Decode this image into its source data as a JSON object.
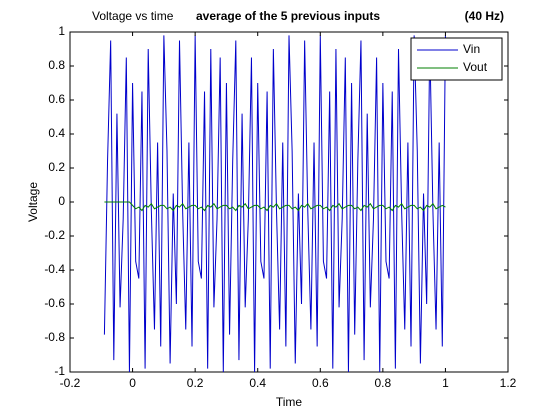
{
  "chart_data": {
    "type": "line",
    "title": "Voltage vs time",
    "subtitle": "average of the 5 previous inputs",
    "annotation": "(40 Hz)",
    "xlabel": "Time",
    "ylabel": "Voltage",
    "xlim": [
      -0.2,
      1.2
    ],
    "xticks": [
      -0.2,
      0,
      0.2,
      0.4,
      0.6,
      0.8,
      1,
      1.2
    ],
    "ylim": [
      -1,
      1
    ],
    "yticks": [
      -1,
      -0.8,
      -0.6,
      -0.4,
      -0.2,
      0,
      0.2,
      0.4,
      0.6,
      0.8,
      1
    ],
    "legend": "northeast",
    "x": [
      -0.09,
      -0.08,
      -0.07,
      -0.06,
      -0.05,
      -0.04,
      -0.03,
      -0.02,
      -0.01,
      0,
      0.01,
      0.02,
      0.03,
      0.04,
      0.05,
      0.06,
      0.07,
      0.08,
      0.09,
      0.1,
      0.11,
      0.12,
      0.13,
      0.14,
      0.15,
      0.16,
      0.17,
      0.18,
      0.19,
      0.2,
      0.21,
      0.22,
      0.23,
      0.24,
      0.25,
      0.26,
      0.27,
      0.28,
      0.29,
      0.3,
      0.31,
      0.32,
      0.33,
      0.34,
      0.35,
      0.36,
      0.37,
      0.38,
      0.39,
      0.4,
      0.41,
      0.42,
      0.43,
      0.44,
      0.45,
      0.46,
      0.47,
      0.48,
      0.49,
      0.5,
      0.51,
      0.52,
      0.53,
      0.54,
      0.55,
      0.56,
      0.57,
      0.58,
      0.59,
      0.6,
      0.61,
      0.62,
      0.63,
      0.64,
      0.65,
      0.66,
      0.67,
      0.68,
      0.69,
      0.7,
      0.71,
      0.72,
      0.73,
      0.74,
      0.75,
      0.76,
      0.77,
      0.78,
      0.79,
      0.8,
      0.81,
      0.82,
      0.83,
      0.84,
      0.85,
      0.86,
      0.87,
      0.88,
      0.89,
      0.9,
      0.91,
      0.92,
      0.93,
      0.94,
      0.95,
      0.96,
      0.97,
      0.98,
      0.99,
      1.0
    ],
    "series": [
      {
        "name": "Vin",
        "color": "#0000cc",
        "values": [
          -0.78,
          0.24,
          0.95,
          -0.93,
          0.52,
          -0.62,
          -0.1,
          0.85,
          -1.0,
          0.7,
          -0.35,
          -0.45,
          0.65,
          -0.98,
          0.9,
          -0.05,
          -0.75,
          0.35,
          -0.85,
          0.98,
          0.3,
          -0.95,
          0.05,
          -0.6,
          0.95,
          -0.05,
          -0.75,
          0.35,
          -0.85,
          0.98,
          -0.35,
          -0.45,
          0.65,
          -0.98,
          0.9,
          -0.62,
          -0.1,
          0.85,
          -1.0,
          0.7,
          -0.78,
          0.24,
          0.95,
          -0.93,
          0.52,
          -0.62,
          -0.1,
          0.85,
          -1.0,
          0.7,
          -0.35,
          -0.45,
          0.65,
          -0.98,
          0.9,
          -0.05,
          -0.75,
          0.35,
          -0.85,
          0.98,
          0.3,
          -0.95,
          0.05,
          -0.6,
          0.95,
          -0.05,
          -0.75,
          0.35,
          -0.85,
          0.98,
          -0.35,
          -0.45,
          0.65,
          -0.98,
          0.9,
          -0.62,
          -0.1,
          0.85,
          -1.0,
          0.7,
          -0.78,
          0.24,
          0.95,
          -0.93,
          0.52,
          -0.62,
          -0.1,
          0.85,
          -1.0,
          0.7,
          -0.35,
          -0.45,
          0.65,
          -0.98,
          0.9,
          -0.05,
          -0.75,
          0.35,
          -0.85,
          0.98,
          0.3,
          -0.95,
          0.05,
          -0.6,
          0.95,
          -0.05,
          -0.75,
          0.35,
          -0.85,
          0.98
        ]
      },
      {
        "name": "Vout",
        "color": "#007f00",
        "values": [
          0,
          0,
          0,
          0,
          0,
          0,
          0,
          0,
          0,
          -0.02,
          -0.04,
          -0.03,
          -0.05,
          -0.02,
          -0.03,
          -0.01,
          -0.04,
          -0.03,
          -0.02,
          -0.02,
          -0.04,
          -0.03,
          -0.05,
          -0.02,
          -0.03,
          -0.01,
          -0.04,
          -0.03,
          -0.02,
          -0.02,
          -0.04,
          -0.03,
          -0.05,
          -0.02,
          -0.03,
          -0.01,
          -0.04,
          -0.03,
          -0.02,
          -0.02,
          -0.04,
          -0.03,
          -0.05,
          -0.02,
          -0.03,
          -0.01,
          -0.04,
          -0.03,
          -0.02,
          -0.02,
          -0.04,
          -0.03,
          -0.05,
          -0.02,
          -0.03,
          -0.01,
          -0.04,
          -0.03,
          -0.02,
          -0.02,
          -0.04,
          -0.03,
          -0.05,
          -0.02,
          -0.03,
          -0.01,
          -0.04,
          -0.03,
          -0.02,
          -0.02,
          -0.04,
          -0.03,
          -0.05,
          -0.02,
          -0.03,
          -0.01,
          -0.04,
          -0.03,
          -0.02,
          -0.02,
          -0.04,
          -0.03,
          -0.05,
          -0.02,
          -0.03,
          -0.01,
          -0.04,
          -0.03,
          -0.02,
          -0.02,
          -0.04,
          -0.03,
          -0.05,
          -0.02,
          -0.03,
          -0.01,
          -0.04,
          -0.03,
          -0.02,
          -0.02,
          -0.04,
          -0.03,
          -0.05,
          -0.02,
          -0.03,
          -0.01,
          -0.04,
          -0.03,
          -0.02,
          -0.03
        ]
      }
    ]
  }
}
